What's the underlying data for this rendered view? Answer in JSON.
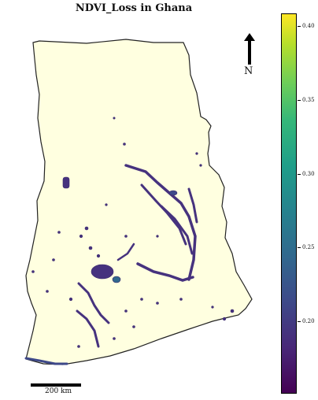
{
  "map": {
    "title": "NDVI_Loss in Ghana",
    "north_label": "N",
    "scale_label": "200 km",
    "fill_color": "#ffffe0",
    "outline_color": "#222222",
    "loss_color": "#46327e",
    "icons": [
      "north-arrow-icon"
    ]
  },
  "colorbar": {
    "colormap": "viridis",
    "ticks": [
      {
        "label": "0.40",
        "value": 0.4
      },
      {
        "label": "0.35",
        "value": 0.35
      },
      {
        "label": "0.30",
        "value": 0.3
      },
      {
        "label": "0.25",
        "value": 0.25
      },
      {
        "label": "0.20",
        "value": 0.2
      }
    ]
  }
}
